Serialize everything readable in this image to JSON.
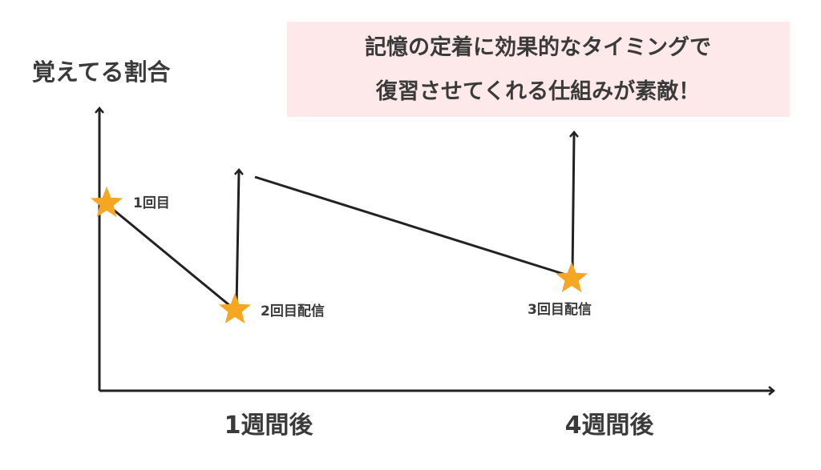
{
  "y_axis_label": "覚えてる割合",
  "callout": {
    "line1": "記憶の定着に効果的なタイミングで",
    "line2": "復習させてくれる仕組みが素敵！",
    "background": "#fde9e9"
  },
  "points": [
    {
      "label": "1回目"
    },
    {
      "label": "2回目配信"
    },
    {
      "label": "3回目配信"
    }
  ],
  "x_labels": [
    "1週間後",
    "4週間後"
  ],
  "colors": {
    "star": "#f5a623",
    "line": "#222222",
    "text": "#3a3a3a"
  }
}
